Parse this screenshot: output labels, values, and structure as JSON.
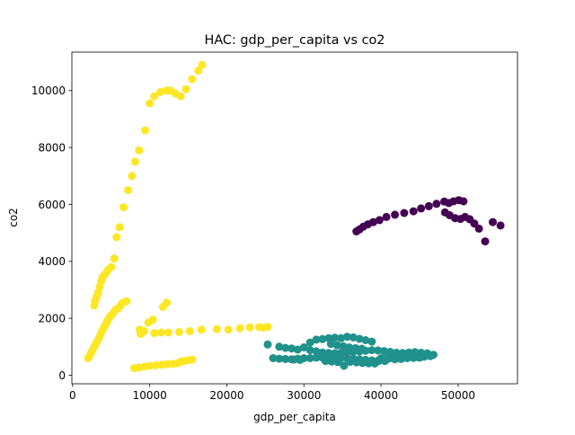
{
  "chart_data": {
    "type": "scatter",
    "title": "HAC: gdp_per_capita vs co2",
    "xlabel": "gdp_per_capita",
    "ylabel": "co2",
    "xlim": [
      -100,
      57700
    ],
    "ylim": [
      -300,
      11350
    ],
    "xticks": [
      0,
      10000,
      20000,
      30000,
      40000,
      50000
    ],
    "yticks": [
      0,
      2000,
      4000,
      6000,
      8000,
      10000
    ],
    "grid": false,
    "legend": "none",
    "colors": {
      "cluster_0": "#440154",
      "cluster_1": "#21918c",
      "cluster_2": "#fde725"
    },
    "series": [
      {
        "color": "#440154",
        "points": [
          [
            36800,
            5050
          ],
          [
            37200,
            5120
          ],
          [
            37700,
            5220
          ],
          [
            38300,
            5300
          ],
          [
            39000,
            5380
          ],
          [
            39800,
            5450
          ],
          [
            40700,
            5560
          ],
          [
            41800,
            5640
          ],
          [
            43000,
            5700
          ],
          [
            44200,
            5760
          ],
          [
            45200,
            5860
          ],
          [
            46200,
            5940
          ],
          [
            47200,
            6020
          ],
          [
            48200,
            6100
          ],
          [
            48800,
            6050
          ],
          [
            49400,
            6110
          ],
          [
            50100,
            6150
          ],
          [
            50700,
            6110
          ],
          [
            48300,
            5720
          ],
          [
            48900,
            5620
          ],
          [
            49600,
            5520
          ],
          [
            50300,
            5490
          ],
          [
            50900,
            5560
          ],
          [
            51500,
            5480
          ],
          [
            52100,
            5330
          ],
          [
            52700,
            5150
          ],
          [
            53500,
            4700
          ],
          [
            54500,
            5380
          ],
          [
            55500,
            5260
          ]
        ]
      },
      {
        "color": "#21918c",
        "points": [
          [
            25300,
            1080
          ],
          [
            26800,
            1000
          ],
          [
            27600,
            960
          ],
          [
            28400,
            940
          ],
          [
            29200,
            900
          ],
          [
            30000,
            980
          ],
          [
            30800,
            1150
          ],
          [
            31600,
            1250
          ],
          [
            32400,
            1270
          ],
          [
            33200,
            1300
          ],
          [
            34000,
            1320
          ],
          [
            34800,
            1300
          ],
          [
            35600,
            1350
          ],
          [
            36400,
            1330
          ],
          [
            37200,
            1280
          ],
          [
            38000,
            1230
          ],
          [
            38800,
            1180
          ],
          [
            26000,
            600
          ],
          [
            26800,
            580
          ],
          [
            27600,
            570
          ],
          [
            28400,
            560
          ],
          [
            29200,
            580
          ],
          [
            30000,
            600
          ],
          [
            30800,
            600
          ],
          [
            31600,
            620
          ],
          [
            32400,
            620
          ],
          [
            33200,
            630
          ],
          [
            34000,
            620
          ],
          [
            34800,
            600
          ],
          [
            35600,
            590
          ],
          [
            36400,
            580
          ],
          [
            37200,
            560
          ],
          [
            38000,
            540
          ],
          [
            38800,
            520
          ],
          [
            39600,
            510
          ],
          [
            30800,
            880
          ],
          [
            31600,
            840
          ],
          [
            32400,
            800
          ],
          [
            33200,
            780
          ],
          [
            34000,
            770
          ],
          [
            34800,
            790
          ],
          [
            35600,
            800
          ],
          [
            36400,
            820
          ],
          [
            37200,
            840
          ],
          [
            38000,
            860
          ],
          [
            38800,
            880
          ],
          [
            39600,
            870
          ],
          [
            40400,
            850
          ],
          [
            41200,
            820
          ],
          [
            42000,
            790
          ],
          [
            42800,
            780
          ],
          [
            43600,
            800
          ],
          [
            44400,
            810
          ],
          [
            45200,
            790
          ],
          [
            46000,
            770
          ],
          [
            46800,
            720
          ],
          [
            40000,
            600
          ],
          [
            40800,
            610
          ],
          [
            41600,
            620
          ],
          [
            42400,
            640
          ],
          [
            43200,
            650
          ],
          [
            44000,
            640
          ],
          [
            44800,
            630
          ],
          [
            45600,
            650
          ],
          [
            46400,
            670
          ],
          [
            33500,
            1100
          ],
          [
            34300,
            1050
          ],
          [
            35100,
            1020
          ],
          [
            35900,
            980
          ],
          [
            36700,
            950
          ],
          [
            37500,
            930
          ],
          [
            41000,
            580
          ],
          [
            41800,
            560
          ],
          [
            42600,
            570
          ],
          [
            43400,
            600
          ],
          [
            44200,
            610
          ],
          [
            45000,
            620
          ],
          [
            32800,
            500
          ],
          [
            33600,
            480
          ],
          [
            34400,
            460
          ],
          [
            35200,
            330
          ],
          [
            36000,
            470
          ],
          [
            36800,
            450
          ],
          [
            37600,
            430
          ],
          [
            38400,
            420
          ],
          [
            39200,
            410
          ],
          [
            29500,
            540
          ],
          [
            28700,
            550
          ],
          [
            39700,
            500
          ],
          [
            40500,
            500
          ]
        ]
      },
      {
        "color": "#fde725",
        "points": [
          [
            2000,
            600
          ],
          [
            2200,
            680
          ],
          [
            2400,
            800
          ],
          [
            2600,
            900
          ],
          [
            2800,
            1000
          ],
          [
            3000,
            1100
          ],
          [
            3200,
            1200
          ],
          [
            3400,
            1300
          ],
          [
            3600,
            1420
          ],
          [
            3800,
            1550
          ],
          [
            4000,
            1650
          ],
          [
            4200,
            1750
          ],
          [
            4400,
            1850
          ],
          [
            4600,
            1950
          ],
          [
            4800,
            2050
          ],
          [
            5000,
            2100
          ],
          [
            5300,
            2200
          ],
          [
            5600,
            2300
          ],
          [
            5900,
            2350
          ],
          [
            6200,
            2450
          ],
          [
            6500,
            2550
          ],
          [
            7000,
            2600
          ],
          [
            2800,
            2450
          ],
          [
            2900,
            2600
          ],
          [
            3100,
            2750
          ],
          [
            3300,
            2900
          ],
          [
            3500,
            3100
          ],
          [
            3700,
            3300
          ],
          [
            3900,
            3450
          ],
          [
            4200,
            3550
          ],
          [
            4600,
            3700
          ],
          [
            5000,
            3800
          ],
          [
            5400,
            4100
          ],
          [
            5700,
            4850
          ],
          [
            6100,
            5200
          ],
          [
            6600,
            5900
          ],
          [
            7200,
            6500
          ],
          [
            7700,
            7000
          ],
          [
            8100,
            7500
          ],
          [
            8600,
            7900
          ],
          [
            9400,
            8600
          ],
          [
            10000,
            9550
          ],
          [
            10600,
            9800
          ],
          [
            11400,
            9950
          ],
          [
            12200,
            10000
          ],
          [
            12700,
            10000
          ],
          [
            13300,
            9900
          ],
          [
            14000,
            9800
          ],
          [
            14700,
            10050
          ],
          [
            15500,
            10400
          ],
          [
            16300,
            10700
          ],
          [
            16800,
            10900
          ],
          [
            8800,
            1450
          ],
          [
            9300,
            1550
          ],
          [
            9800,
            1850
          ],
          [
            10400,
            1950
          ],
          [
            11700,
            2400
          ],
          [
            12200,
            2550
          ],
          [
            8700,
            1600
          ],
          [
            10600,
            1480
          ],
          [
            11500,
            1500
          ],
          [
            12400,
            1500
          ],
          [
            13800,
            1520
          ],
          [
            15200,
            1550
          ],
          [
            16700,
            1600
          ],
          [
            18700,
            1620
          ],
          [
            20200,
            1600
          ],
          [
            21700,
            1650
          ],
          [
            23000,
            1680
          ],
          [
            24200,
            1690
          ],
          [
            24700,
            1670
          ],
          [
            25300,
            1700
          ],
          [
            8000,
            250
          ],
          [
            8600,
            270
          ],
          [
            9300,
            300
          ],
          [
            10000,
            330
          ],
          [
            10800,
            350
          ],
          [
            11600,
            370
          ],
          [
            12300,
            390
          ],
          [
            13000,
            400
          ],
          [
            13600,
            420
          ],
          [
            14000,
            480
          ],
          [
            14500,
            500
          ],
          [
            15000,
            530
          ],
          [
            15500,
            550
          ]
        ]
      }
    ]
  }
}
